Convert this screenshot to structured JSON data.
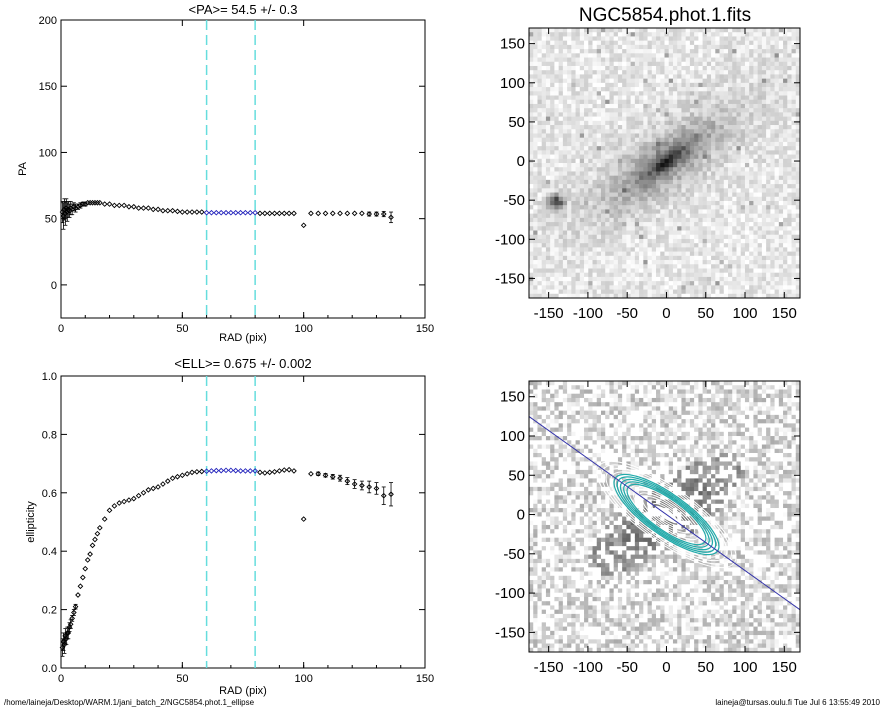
{
  "chart_data": [
    {
      "type": "scatter",
      "title": "<PA>=  54.5 +/-   0.3",
      "xlabel": "RAD (pix)",
      "ylabel": "PA",
      "xlim": [
        0,
        150
      ],
      "ylim": [
        -25,
        200
      ],
      "xticks": [
        "0",
        "50",
        "100",
        "150"
      ],
      "yticks": [
        "0",
        "50",
        "100",
        "150",
        "200"
      ],
      "vlines": [
        60,
        80
      ],
      "highlight_range": [
        60,
        80
      ],
      "series": [
        {
          "x": [
            0.6,
            1.0,
            1.4,
            1.8,
            2.2,
            2.6,
            3.0,
            3.5,
            4.0,
            4.6,
            5.3,
            6.0,
            7.0,
            8.0,
            9.0,
            10.0,
            11.0,
            12.0,
            13.0,
            14.0,
            15.0,
            16.0,
            18.0,
            20.0,
            22.0,
            24.0,
            26.0,
            28.0,
            30.0,
            32.0,
            34.0,
            36.0,
            38.0,
            40.0,
            42.0,
            44.0,
            46.0,
            48.0,
            50.0,
            52.0,
            54.0,
            56.0,
            58.0,
            60.0,
            62.0,
            64.0,
            66.0,
            68.0,
            70.0,
            72.0,
            74.0,
            76.0,
            78.0,
            80.0,
            82.0,
            84.0,
            86.0,
            88.0,
            90.0,
            92.0,
            94.0,
            96.0,
            100.0,
            103.0,
            106.0,
            109.0,
            112.0,
            115.0,
            118.0,
            121.0,
            124.0,
            127.0,
            130.0,
            133.0,
            136.0
          ],
          "y": [
            55,
            52,
            57,
            54,
            58,
            55,
            57,
            56,
            58,
            57,
            59,
            58,
            59,
            60,
            61,
            61,
            62,
            62,
            62,
            62,
            62,
            62,
            61,
            61,
            60,
            60,
            60,
            59,
            59,
            58,
            58,
            58,
            57,
            57,
            56,
            56,
            56,
            55.5,
            55,
            55,
            55,
            55,
            55,
            54.5,
            54.5,
            54.5,
            54.5,
            54.5,
            54.5,
            54.5,
            54.5,
            54.5,
            54.5,
            54.5,
            54,
            54,
            54,
            54,
            54,
            54,
            54,
            54,
            45,
            54,
            54,
            54,
            54,
            54,
            54,
            54,
            54,
            53.5,
            53.5,
            53.5,
            51
          ],
          "yerr": [
            8,
            10,
            8,
            9,
            7,
            7,
            6,
            5,
            5,
            4,
            3,
            3,
            2,
            2,
            1.5,
            1.5,
            1,
            1,
            1,
            1,
            1,
            1,
            0.5,
            0.5,
            0.5,
            0.5,
            0.5,
            0.5,
            0.5,
            0.5,
            0.5,
            0.5,
            0.5,
            0.5,
            0.5,
            0.5,
            0.5,
            0.5,
            0.5,
            0.5,
            0.5,
            0.5,
            0.5,
            0.5,
            0.5,
            0.5,
            0.5,
            0.5,
            0.5,
            0.5,
            0.5,
            0.5,
            0.5,
            0.5,
            0.5,
            0.5,
            0.5,
            0.5,
            0.5,
            0.5,
            0.5,
            0.5,
            0.5,
            0.5,
            0.5,
            0.5,
            0.5,
            0.5,
            1,
            1,
            1,
            1.5,
            1.5,
            2,
            4
          ]
        }
      ]
    },
    {
      "type": "scatter",
      "title": "<ELL>= 0.675 +/-  0.002",
      "xlabel": "RAD (pix)",
      "ylabel": "ellipticity",
      "xlim": [
        0,
        150
      ],
      "ylim": [
        0.0,
        1.0
      ],
      "xticks": [
        "0",
        "50",
        "100",
        "150"
      ],
      "yticks": [
        "0.0",
        "0.2",
        "0.4",
        "0.6",
        "0.8",
        "1.0"
      ],
      "vlines": [
        60,
        80
      ],
      "highlight_range": [
        60,
        80
      ],
      "series": [
        {
          "x": [
            0.6,
            1.0,
            1.4,
            1.8,
            2.2,
            2.6,
            3.0,
            3.5,
            4.0,
            4.6,
            5.3,
            6.0,
            7.0,
            8.0,
            9.0,
            10.0,
            11.0,
            12.0,
            13.0,
            14.0,
            15.0,
            16.0,
            18.0,
            20.0,
            22.0,
            24.0,
            26.0,
            28.0,
            30.0,
            32.0,
            34.0,
            36.0,
            38.0,
            40.0,
            42.0,
            44.0,
            46.0,
            48.0,
            50.0,
            52.0,
            54.0,
            56.0,
            58.0,
            60.0,
            62.0,
            64.0,
            66.0,
            68.0,
            70.0,
            72.0,
            74.0,
            76.0,
            78.0,
            80.0,
            82.0,
            84.0,
            86.0,
            88.0,
            90.0,
            92.0,
            94.0,
            96.0,
            100.0,
            103.0,
            106.0,
            109.0,
            112.0,
            115.0,
            118.0,
            121.0,
            124.0,
            127.0,
            130.0,
            133.0,
            136.0
          ],
          "y": [
            0.07,
            0.09,
            0.08,
            0.11,
            0.1,
            0.12,
            0.12,
            0.14,
            0.15,
            0.17,
            0.19,
            0.21,
            0.25,
            0.28,
            0.31,
            0.34,
            0.37,
            0.39,
            0.42,
            0.44,
            0.46,
            0.48,
            0.51,
            0.54,
            0.555,
            0.565,
            0.57,
            0.575,
            0.58,
            0.59,
            0.6,
            0.61,
            0.615,
            0.62,
            0.63,
            0.64,
            0.65,
            0.655,
            0.66,
            0.665,
            0.67,
            0.672,
            0.673,
            0.674,
            0.675,
            0.676,
            0.676,
            0.677,
            0.677,
            0.676,
            0.675,
            0.675,
            0.675,
            0.675,
            0.67,
            0.668,
            0.67,
            0.672,
            0.675,
            0.678,
            0.679,
            0.675,
            0.51,
            0.665,
            0.665,
            0.66,
            0.655,
            0.65,
            0.64,
            0.63,
            0.625,
            0.62,
            0.615,
            0.59,
            0.595
          ],
          "yerr": [
            0.03,
            0.03,
            0.03,
            0.025,
            0.02,
            0.02,
            0.02,
            0.015,
            0.015,
            0.01,
            0.01,
            0.008,
            0.005,
            0.005,
            0.004,
            0.003,
            0.003,
            0.003,
            0.003,
            0.003,
            0.002,
            0.002,
            0.002,
            0.002,
            0.002,
            0.002,
            0.002,
            0.002,
            0.002,
            0.002,
            0.002,
            0.002,
            0.002,
            0.002,
            0.002,
            0.002,
            0.002,
            0.002,
            0.002,
            0.002,
            0.002,
            0.002,
            0.002,
            0.002,
            0.002,
            0.002,
            0.002,
            0.002,
            0.002,
            0.002,
            0.002,
            0.002,
            0.002,
            0.002,
            0.002,
            0.002,
            0.002,
            0.002,
            0.002,
            0.002,
            0.002,
            0.002,
            0.005,
            0.005,
            0.006,
            0.006,
            0.008,
            0.01,
            0.012,
            0.015,
            0.015,
            0.02,
            0.02,
            0.03,
            0.04
          ]
        }
      ]
    },
    {
      "type": "heatmap",
      "title": "NGC5854.phot.1.fits",
      "xlim": [
        -175,
        170
      ],
      "ylim": [
        -175,
        170
      ],
      "xticks": [
        "-150",
        "-100",
        "-50",
        "0",
        "50",
        "100",
        "150"
      ],
      "yticks": [
        "-150",
        "-100",
        "-50",
        "0",
        "50",
        "100",
        "150"
      ],
      "source": {
        "center": [
          0,
          0
        ],
        "pa_deg": 54.5,
        "ellipticity": 0.675
      },
      "star": [
        -140,
        -52
      ]
    },
    {
      "type": "heatmap",
      "title": "",
      "xlim": [
        -175,
        170
      ],
      "ylim": [
        -175,
        170
      ],
      "xticks": [
        "-150",
        "-100",
        "-50",
        "0",
        "50",
        "100",
        "150"
      ],
      "yticks": [
        "-150",
        "-100",
        "-50",
        "0",
        "50",
        "100",
        "150"
      ],
      "contours_ell": 0.675,
      "contours_pa_deg": 54.5,
      "highlight_contours_sma": [
        60,
        65,
        70,
        75,
        80
      ],
      "major_axis_line_pa_deg": 54.5
    }
  ],
  "footer": {
    "left": "/home/laineja/Desktop/WARM.1/jani_batch_2/NGC5854.phot.1_ellipse",
    "right": "laineja@tursas.oulu.fi  Tue Jul  6 13:55:49 2010"
  },
  "colors": {
    "axis": "#000000",
    "vline": "#66dddd",
    "highlight": "#2222bb",
    "contour": "#ffffff",
    "contour_highlight": "#22aaaa",
    "major_axis": "#3333aa"
  }
}
